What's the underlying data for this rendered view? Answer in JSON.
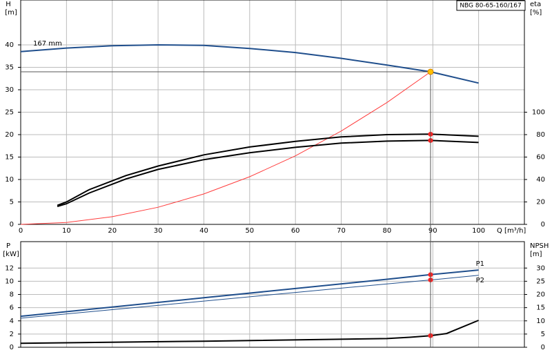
{
  "chart_data": [
    {
      "type": "line",
      "title": "NBG 80-65-160/167",
      "y_label": "H",
      "y_unit": "[m]",
      "y2_label": "eta",
      "y2_unit": "[%]",
      "x_label": "Q [m³/h]",
      "xlim": [
        0,
        110
      ],
      "xticks": [
        0,
        10,
        20,
        30,
        40,
        50,
        60,
        70,
        80,
        90,
        100
      ],
      "ylim": [
        0,
        50
      ],
      "yticks": [
        0,
        5,
        10,
        15,
        20,
        25,
        30,
        35,
        40
      ],
      "y2lim": [
        0,
        200
      ],
      "y2ticks": [
        0,
        20,
        40,
        60,
        80,
        100
      ],
      "grid": true,
      "operating_point": {
        "x": 89.5,
        "y": 34
      },
      "series": [
        {
          "name": "167 mm",
          "color": "#1f4e8c",
          "x": [
            0,
            10,
            20,
            30,
            40,
            50,
            60,
            70,
            80,
            89.5,
            100
          ],
          "values": [
            38.5,
            39.3,
            39.8,
            40,
            39.9,
            39.2,
            38.3,
            37,
            35.5,
            34,
            31.5
          ]
        },
        {
          "color": "#ff3b3b",
          "x": [
            0,
            10,
            20,
            30,
            40,
            50,
            60,
            70,
            80,
            89.5
          ],
          "values": [
            0,
            0.42,
            1.7,
            3.82,
            6.79,
            10.61,
            15.28,
            20.8,
            27.17,
            34
          ]
        },
        {
          "color": "#000000",
          "axis": "y2",
          "x": [
            8,
            10,
            15,
            23,
            30,
            40,
            50,
            60,
            70,
            80,
            89.5,
            100
          ],
          "values": [
            17,
            20,
            31,
            43.5,
            52,
            62,
            69,
            74,
            78,
            80,
            80.4,
            78.5
          ]
        },
        {
          "color": "#000000",
          "axis": "y2",
          "x": [
            8,
            10,
            15,
            23,
            30,
            40,
            50,
            60,
            70,
            80,
            89.5,
            100
          ],
          "values": [
            16,
            18.4,
            28,
            40.5,
            49,
            57.7,
            63.8,
            68.7,
            72.4,
            74.2,
            74.8,
            73
          ]
        }
      ]
    },
    {
      "type": "line",
      "y_label": "P",
      "y_unit": "[kW]",
      "y2_label": "NPSH",
      "y2_unit": "[m]",
      "xlim": [
        0,
        110
      ],
      "ylim": [
        0,
        16
      ],
      "yticks": [
        0,
        2,
        4,
        6,
        8,
        10,
        12
      ],
      "y2lim": [
        0,
        40
      ],
      "y2ticks": [
        0,
        5,
        10,
        15,
        20,
        25,
        30
      ],
      "grid": true,
      "series": [
        {
          "name": "P1",
          "color": "#1f4e8c",
          "x": [
            0,
            20,
            40,
            60,
            80,
            89.5,
            100
          ],
          "values": [
            4.7,
            6.1,
            7.5,
            8.9,
            10.3,
            11,
            11.7
          ]
        },
        {
          "name": "P2",
          "color": "#1f4e8c",
          "x": [
            0,
            20,
            40,
            60,
            80,
            89.5,
            100
          ],
          "values": [
            4.4,
            5.7,
            7,
            8.3,
            9.6,
            10.2,
            10.9
          ]
        },
        {
          "color": "#000000",
          "axis": "y2",
          "x": [
            0,
            40,
            80,
            85,
            89.5,
            93,
            100
          ],
          "values": [
            1.5,
            2.3,
            3.3,
            3.8,
            4.4,
            5.2,
            10.2
          ]
        }
      ]
    }
  ]
}
